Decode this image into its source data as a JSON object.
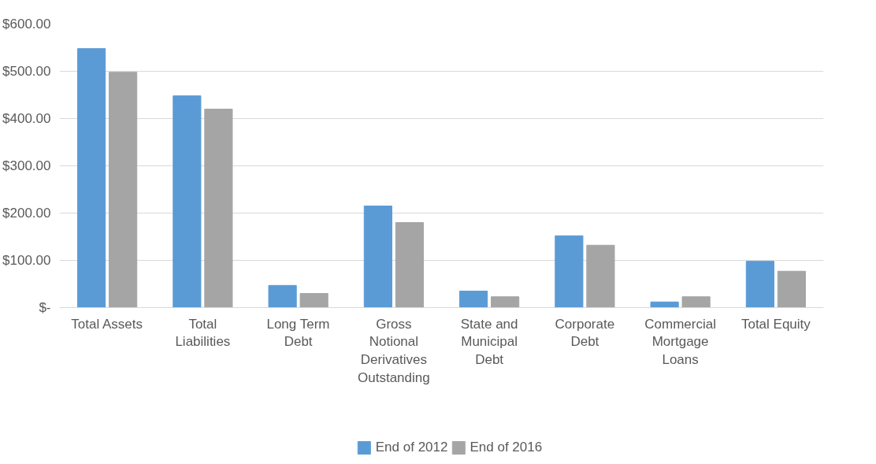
{
  "chart_data": {
    "type": "bar",
    "categories": [
      "Total Assets",
      "Total Liabilities",
      "Long Term Debt",
      "Gross Notional Derivatives Outstanding",
      "State and Municipal Debt",
      "Corporate Debt",
      "Commercial Mortgage Loans",
      "Total Equity"
    ],
    "series": [
      {
        "name": "End of 2012",
        "color": "#5b9bd5",
        "values": [
          548,
          448,
          47,
          215,
          35,
          152,
          12,
          98
        ]
      },
      {
        "name": "End of 2016",
        "color": "#a5a5a5",
        "values": [
          498,
          420,
          30,
          180,
          23,
          132,
          23,
          77
        ]
      }
    ],
    "ylim": [
      0,
      600
    ],
    "yticks": [
      {
        "value": 0,
        "label": "$-"
      },
      {
        "value": 100,
        "label": "$100.00"
      },
      {
        "value": 200,
        "label": "$200.00"
      },
      {
        "value": 300,
        "label": "$300.00"
      },
      {
        "value": 400,
        "label": "$400.00"
      },
      {
        "value": 500,
        "label": "$500.00"
      },
      {
        "value": 600,
        "label": "$600.00"
      }
    ],
    "grid": "y",
    "legend": "bottom"
  }
}
